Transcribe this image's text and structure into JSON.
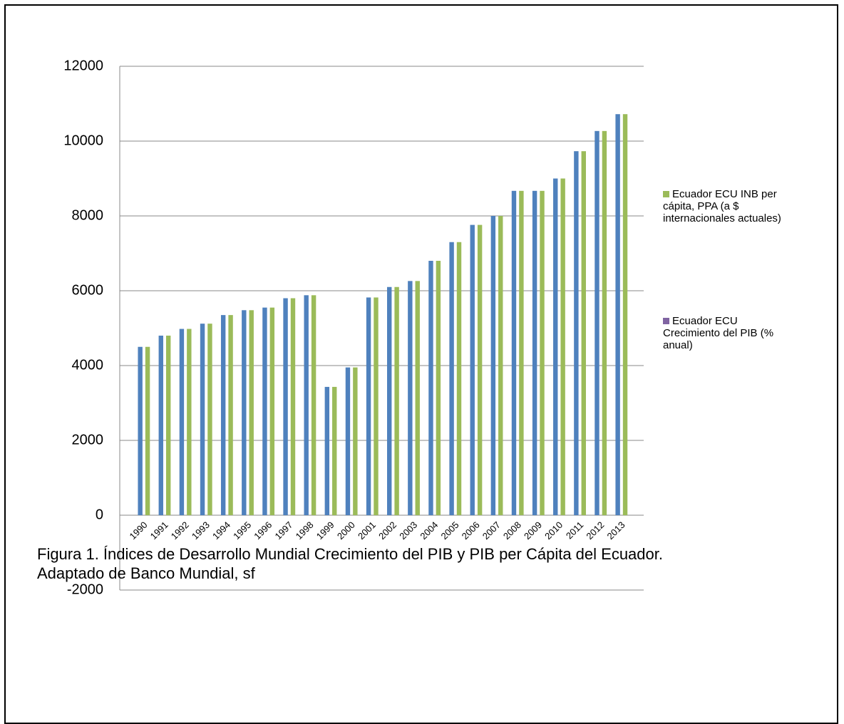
{
  "chart_data": {
    "type": "bar",
    "categories": [
      "1990",
      "1991",
      "1992",
      "1993",
      "1994",
      "1995",
      "1996",
      "1997",
      "1998",
      "1999",
      "2000",
      "2001",
      "2002",
      "2003",
      "2004",
      "2005",
      "2006",
      "2007",
      "2008",
      "2009",
      "2010",
      "2011",
      "2012",
      "2013"
    ],
    "series": [
      {
        "color": "#4f81bd",
        "values": [
          4500,
          4800,
          4980,
          5120,
          5350,
          5480,
          5550,
          5800,
          5880,
          3430,
          3950,
          5820,
          6100,
          6260,
          6800,
          7300,
          7760,
          8000,
          8670,
          8670,
          9000,
          9730,
          10270,
          10720
        ]
      },
      {
        "name": "Ecuador ECU INB per cápita, PPA (a $ internacionales actuales)",
        "color": "#9bbb59",
        "values": [
          4500,
          4800,
          4980,
          5120,
          5350,
          5480,
          5550,
          5800,
          5880,
          3430,
          3950,
          5820,
          6100,
          6260,
          6800,
          7300,
          7760,
          8000,
          8670,
          8670,
          9000,
          9730,
          10270,
          10720
        ]
      },
      {
        "name": "Ecuador ECU Crecimiento del PIB (% anual)",
        "color": "#8064a2",
        "values": [
          0,
          0,
          0,
          0,
          0,
          0,
          0,
          0,
          0,
          0,
          0,
          0,
          0,
          0,
          0,
          0,
          0,
          0,
          0,
          0,
          0,
          0,
          0,
          0
        ]
      }
    ],
    "ylim": [
      -2000,
      12000
    ],
    "yticks": [
      -2000,
      0,
      2000,
      4000,
      6000,
      8000,
      10000,
      12000
    ],
    "grid": true,
    "legend": "right"
  },
  "caption": {
    "title": "Figura 1. Índices de Desarrollo Mundial Crecimiento del PIB y PIB per Cápita del Ecuador.",
    "source": "Adaptado de Banco Mundial, sf"
  }
}
